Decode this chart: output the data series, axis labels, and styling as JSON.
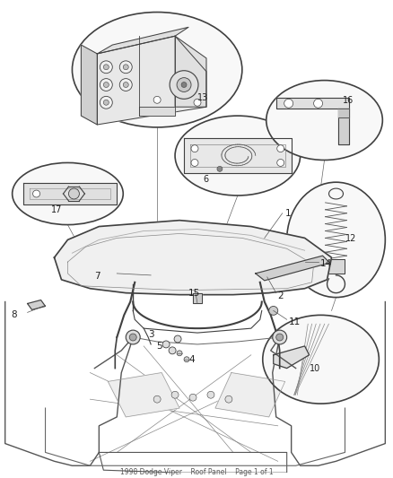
{
  "background_color": "#ffffff",
  "line_color": "#404040",
  "label_color": "#222222",
  "fig_width": 4.38,
  "fig_height": 5.33,
  "dpi": 100,
  "footer_text": "1998 Dodge Viper    Roof Panel    Page 1 of 1"
}
